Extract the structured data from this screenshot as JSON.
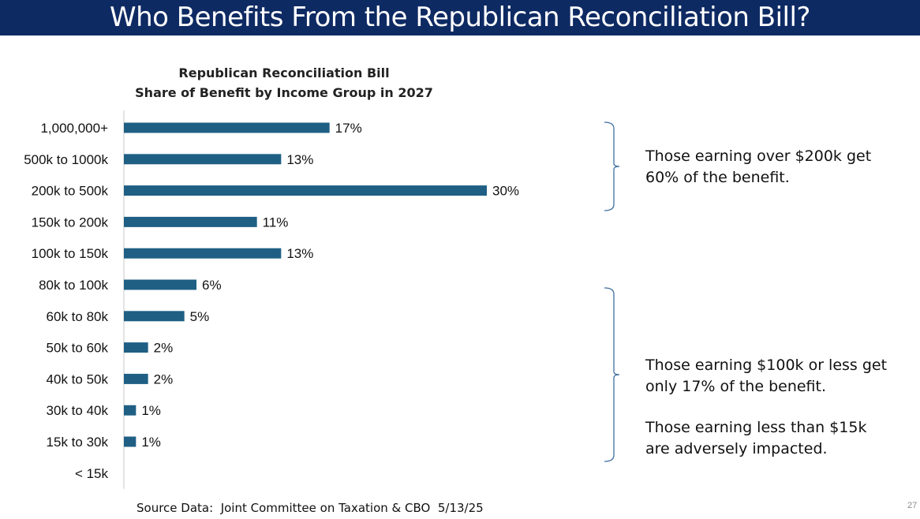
{
  "slide": {
    "title": "Who Benefits From the Republican Reconciliation Bill?",
    "source": "Source Data:  Joint Committee on Taxation & CBO  5/13/25",
    "page_number": "27"
  },
  "colors": {
    "banner": "#0e2a63",
    "bar": "#1f5f84",
    "bracket": "#3f6fa0"
  },
  "annotations": {
    "upper": {
      "line1": "Those earning over $200k get",
      "line2": "60% of the benefit."
    },
    "lower_a": {
      "line1": "Those earning $100k or less get",
      "line2": "only 17% of the benefit."
    },
    "lower_b": {
      "line1": "Those earning less than $15k",
      "line2": "are adversely impacted."
    }
  },
  "chart_data": {
    "type": "bar",
    "orientation": "horizontal",
    "title_line1": "Republican Reconciliation Bill",
    "title_line2": "Share of Benefit by Income Group in 2027",
    "categories": [
      "1,000,000+",
      "500k to 1000k",
      "200k to 500k",
      "150k to 200k",
      "100k to 150k",
      "80k to 100k",
      "60k to 80k",
      "50k to 60k",
      "40k to 50k",
      "30k to 40k",
      "15k to 30k",
      "< 15k"
    ],
    "values": [
      17,
      13,
      30,
      11,
      13,
      6,
      5,
      2,
      2,
      1,
      1,
      null
    ],
    "value_labels": [
      "17%",
      "13%",
      "30%",
      "11%",
      "13%",
      "6%",
      "5%",
      "2%",
      "2%",
      "1%",
      "1%",
      ""
    ],
    "xlim": [
      0,
      30
    ],
    "unit": "%",
    "xlabel": "",
    "ylabel": ""
  }
}
